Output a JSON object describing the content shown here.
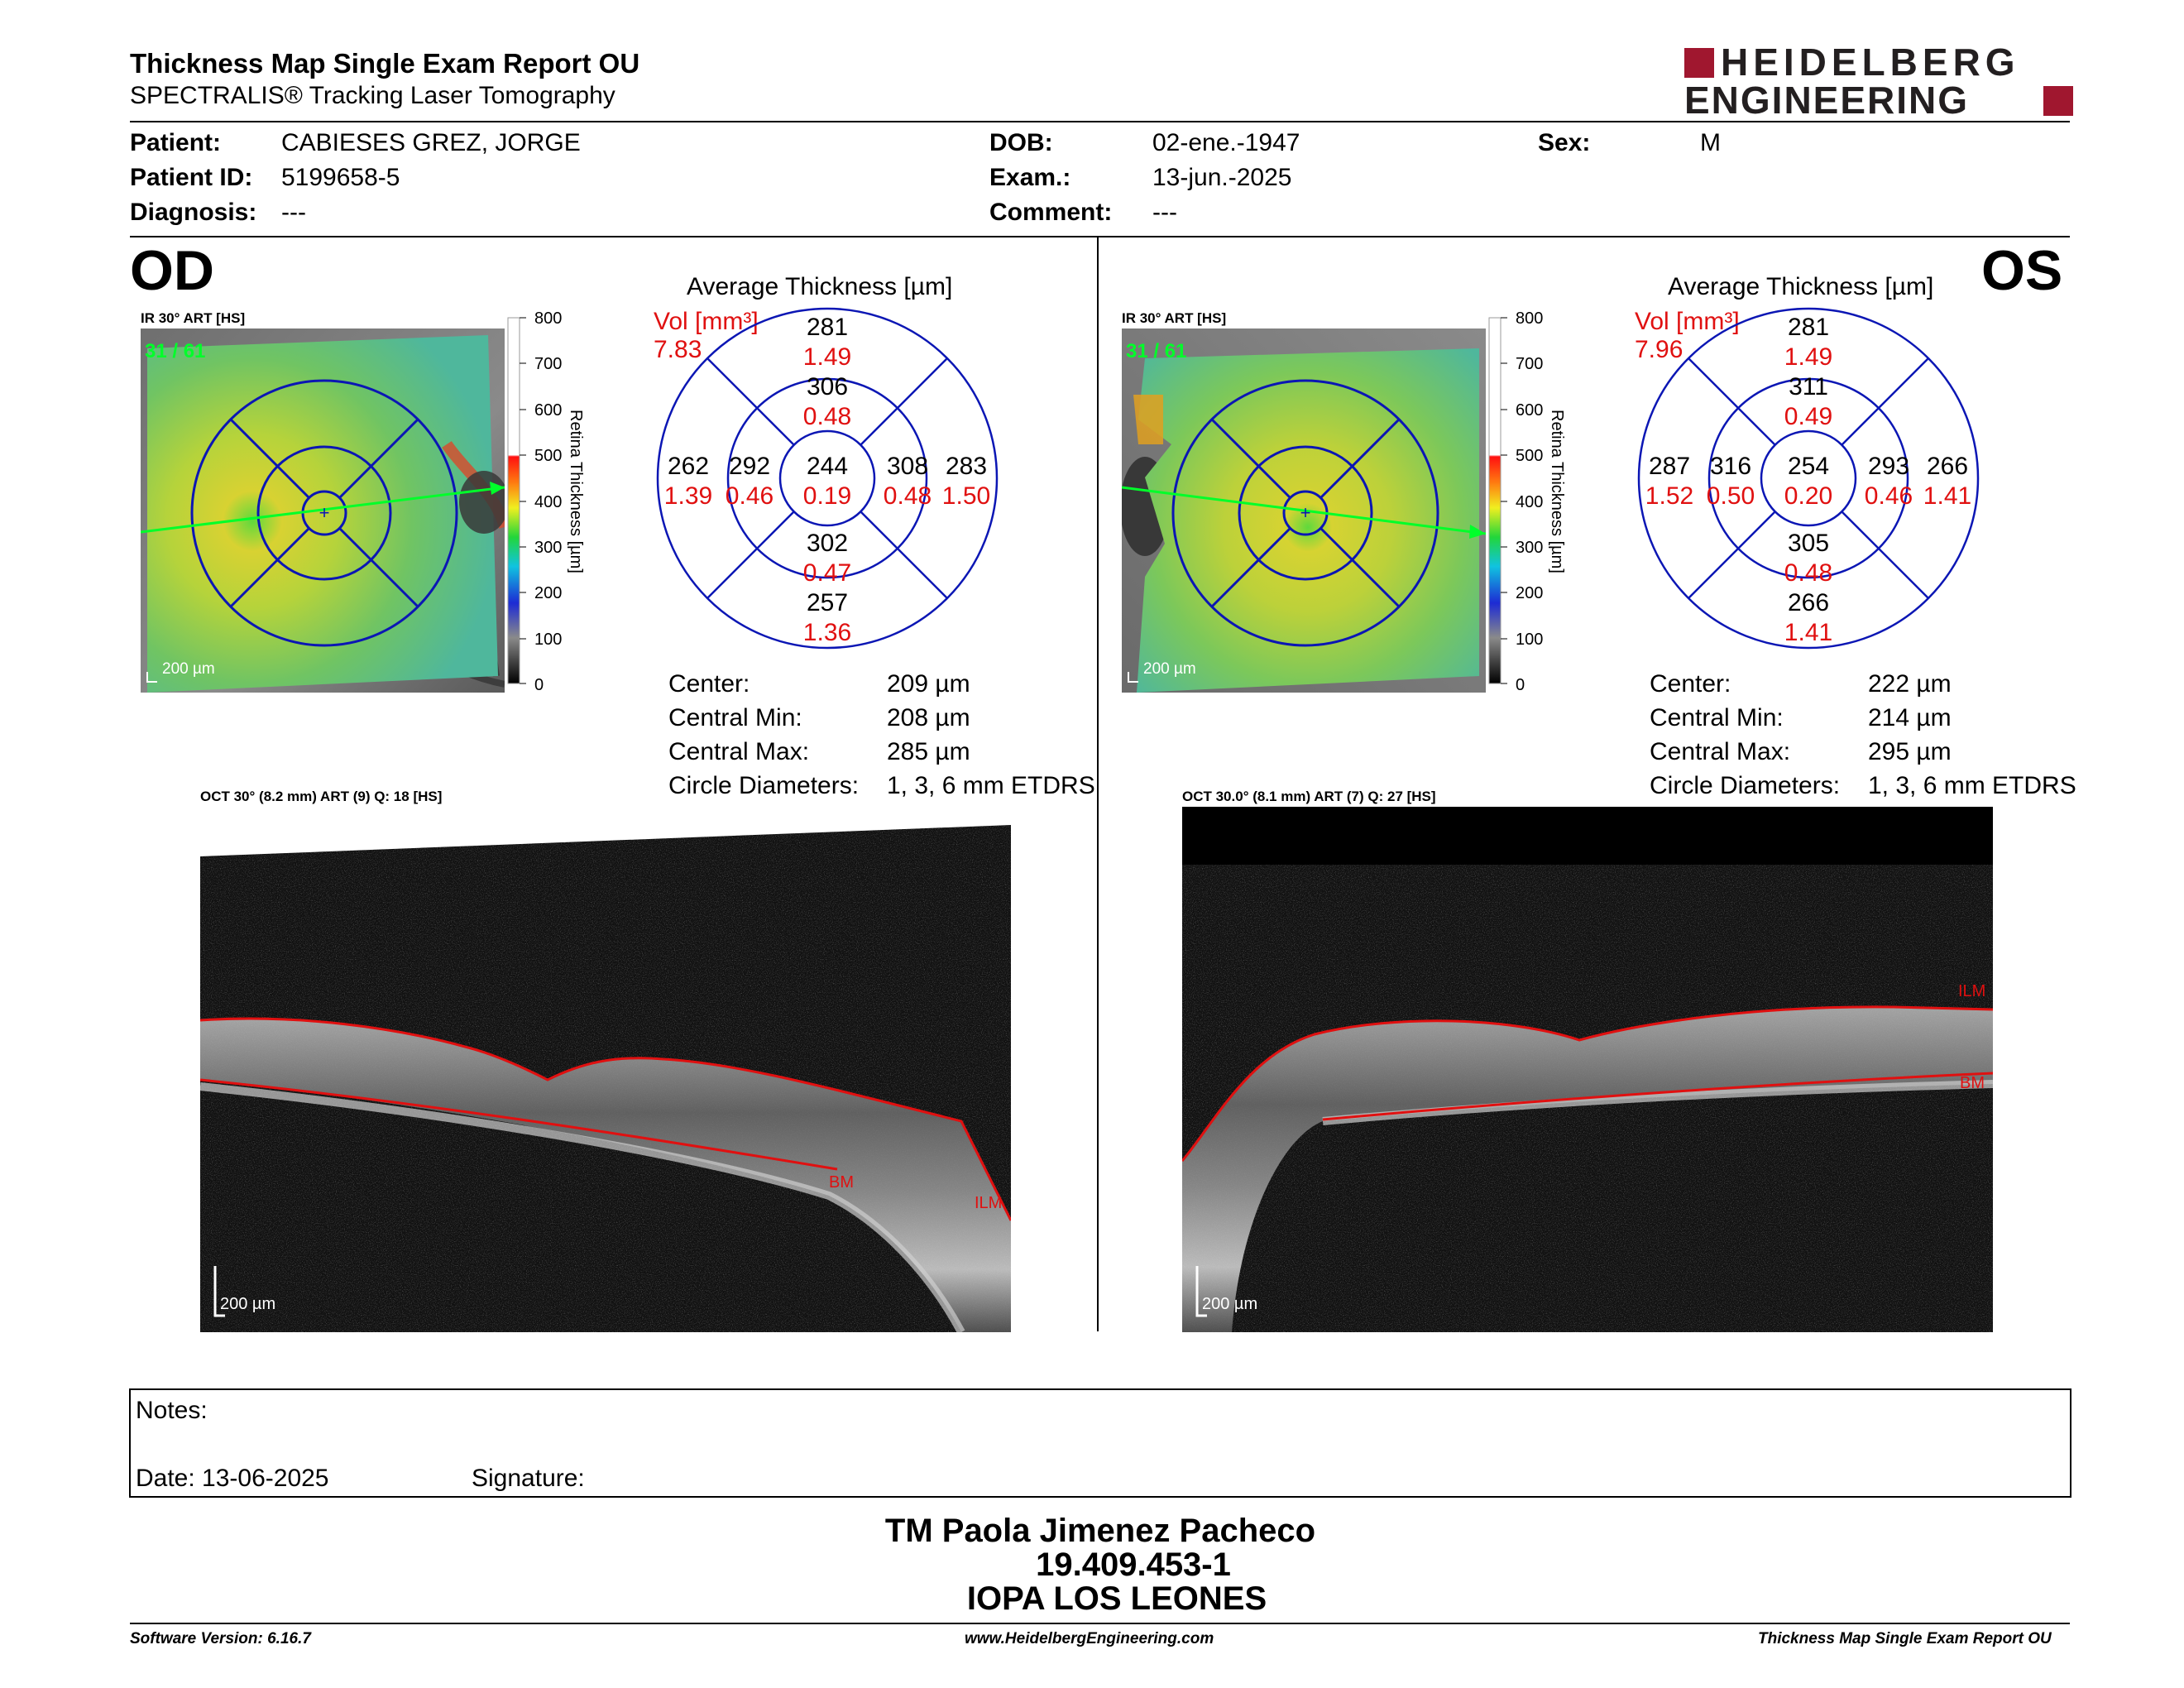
{
  "header": {
    "title": "Thickness Map Single Exam Report OU",
    "subtitle": "SPECTRALIS® Tracking Laser Tomography",
    "logo_line1": "HEIDELBERG",
    "logo_line2": "ENGINEERING",
    "brand_color": "#a0172f"
  },
  "patient": {
    "patient_label": "Patient:",
    "patient_value": "CABIESES GREZ, JORGE",
    "id_label": "Patient ID:",
    "id_value": "5199658-5",
    "diagnosis_label": "Diagnosis:",
    "diagnosis_value": "---",
    "dob_label": "DOB:",
    "dob_value": "02-ene.-1947",
    "exam_label": "Exam.:",
    "exam_value": "13-jun.-2025",
    "comment_label": "Comment:",
    "comment_value": "---",
    "sex_label": "Sex:",
    "sex_value": "M"
  },
  "od": {
    "eye": "OD",
    "ir_header": "IR 30° ART [HS]",
    "frame": "31 / 61",
    "scale": "200 µm",
    "oct_header": "OCT 30° (8.2 mm) ART (9) Q: 18 [HS]",
    "oct_scale": "200 µm",
    "ilm": "ILM",
    "bm": "BM",
    "avg_title": "Average Thickness [µm]",
    "vol_label": "Vol [mm³]",
    "vol_value": "7.83",
    "grid": {
      "outer_sup_t": "281",
      "outer_sup_v": "1.49",
      "inner_sup_t": "306",
      "inner_sup_v": "0.48",
      "outer_left_t": "262",
      "outer_left_v": "1.39",
      "inner_left_t": "292",
      "inner_left_v": "0.46",
      "center_t": "244",
      "center_v": "0.19",
      "inner_right_t": "308",
      "inner_right_v": "0.48",
      "outer_right_t": "283",
      "outer_right_v": "1.50",
      "inner_inf_t": "302",
      "inner_inf_v": "0.47",
      "outer_inf_t": "257",
      "outer_inf_v": "1.36"
    },
    "stats": {
      "center_label": "Center:",
      "center_value": "209 µm",
      "min_label": "Central Min:",
      "min_value": "208 µm",
      "max_label": "Central Max:",
      "max_value": "285 µm",
      "circ_label": "Circle Diameters:",
      "circ_value": "1, 3, 6 mm ETDRS"
    }
  },
  "os": {
    "eye": "OS",
    "ir_header": "IR 30° ART [HS]",
    "frame": "31 / 61",
    "scale": "200 µm",
    "oct_header": "OCT 30.0° (8.1 mm) ART (7) Q: 27 [HS]",
    "oct_scale": "200 µm",
    "ilm": "ILM",
    "bm": "BM",
    "avg_title": "Average Thickness [µm]",
    "vol_label": "Vol [mm³]",
    "vol_value": "7.96",
    "grid": {
      "outer_sup_t": "281",
      "outer_sup_v": "1.49",
      "inner_sup_t": "311",
      "inner_sup_v": "0.49",
      "outer_left_t": "287",
      "outer_left_v": "1.52",
      "inner_left_t": "316",
      "inner_left_v": "0.50",
      "center_t": "254",
      "center_v": "0.20",
      "inner_right_t": "293",
      "inner_right_v": "0.46",
      "outer_right_t": "266",
      "outer_right_v": "1.41",
      "inner_inf_t": "305",
      "inner_inf_v": "0.48",
      "outer_inf_t": "266",
      "outer_inf_v": "1.41"
    },
    "stats": {
      "center_label": "Center:",
      "center_value": "222 µm",
      "min_label": "Central Min:",
      "min_value": "214 µm",
      "max_label": "Central Max:",
      "max_value": "295 µm",
      "circ_label": "Circle Diameters:",
      "circ_value": "1, 3, 6 mm ETDRS"
    }
  },
  "colorbar": {
    "ticks": [
      "800",
      "700",
      "600",
      "500",
      "400",
      "300",
      "200",
      "100",
      "0"
    ],
    "label": "Retina Thickness [µm]"
  },
  "notes": {
    "notes_label": "Notes:",
    "date_label": "Date: 13-06-2025",
    "signature_label": "Signature:"
  },
  "signature": {
    "name": "TM Paola Jimenez Pacheco",
    "id": "19.409.453-1",
    "org": "IOPA LOS LEONES"
  },
  "footer": {
    "software": "Software Version: 6.16.7",
    "website": "www.HeidelbergEngineering.com",
    "report": "Thickness Map Single Exam Report OU"
  }
}
